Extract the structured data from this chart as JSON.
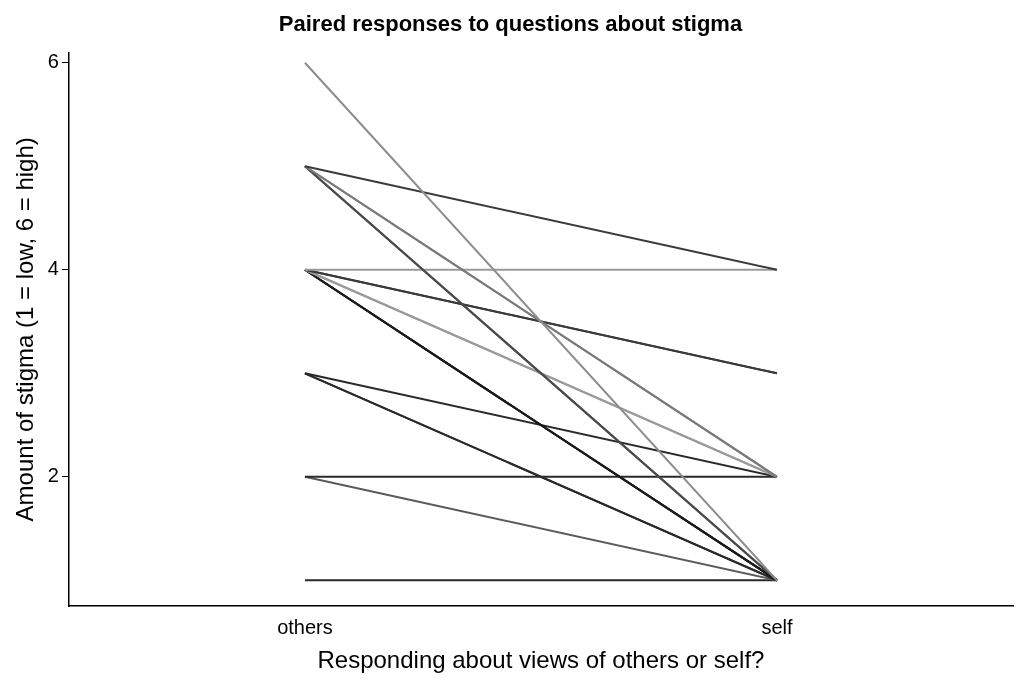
{
  "chart_data": {
    "type": "line",
    "title": "Paired responses to questions about stigma",
    "xlabel": "Responding about views of others or self?",
    "ylabel": "Amount of stigma (1 = low, 6 = high)",
    "categories": [
      "others",
      "self"
    ],
    "series": [
      {
        "color": "#8c8c8c",
        "values": [
          6,
          1
        ]
      },
      {
        "color": "#3a3a3a",
        "values": [
          5,
          4
        ]
      },
      {
        "color": "#7a7a7a",
        "values": [
          5,
          2
        ]
      },
      {
        "color": "#7a7a7a",
        "values": [
          5,
          2
        ]
      },
      {
        "color": "#4a4a4a",
        "values": [
          5,
          1
        ]
      },
      {
        "color": "#4a4a4a",
        "values": [
          5,
          1
        ]
      },
      {
        "color": "#9a9a9a",
        "values": [
          4,
          4
        ]
      },
      {
        "color": "#3a3a3a",
        "values": [
          4,
          3
        ]
      },
      {
        "color": "#3a3a3a",
        "values": [
          4,
          3
        ]
      },
      {
        "color": "#9a9a9a",
        "values": [
          4,
          2
        ]
      },
      {
        "color": "#9a9a9a",
        "values": [
          4,
          2
        ]
      },
      {
        "color": "#1a1a1a",
        "values": [
          4,
          1
        ]
      },
      {
        "color": "#1a1a1a",
        "values": [
          4,
          1
        ]
      },
      {
        "color": "#1a1a1a",
        "values": [
          4,
          1
        ]
      },
      {
        "color": "#2a2a2a",
        "values": [
          3,
          2
        ]
      },
      {
        "color": "#2a2a2a",
        "values": [
          3,
          1
        ]
      },
      {
        "color": "#2a2a2a",
        "values": [
          3,
          1
        ]
      },
      {
        "color": "#2a2a2a",
        "values": [
          2,
          2
        ]
      },
      {
        "color": "#5a5a5a",
        "values": [
          2,
          1
        ]
      },
      {
        "color": "#2a2a2a",
        "values": [
          1,
          1
        ]
      }
    ],
    "ylim": [
      0.75,
      6.1
    ],
    "yticks": [
      2,
      4,
      6
    ],
    "grid": false,
    "legend": false,
    "marker": "none",
    "line_style": "solid"
  }
}
